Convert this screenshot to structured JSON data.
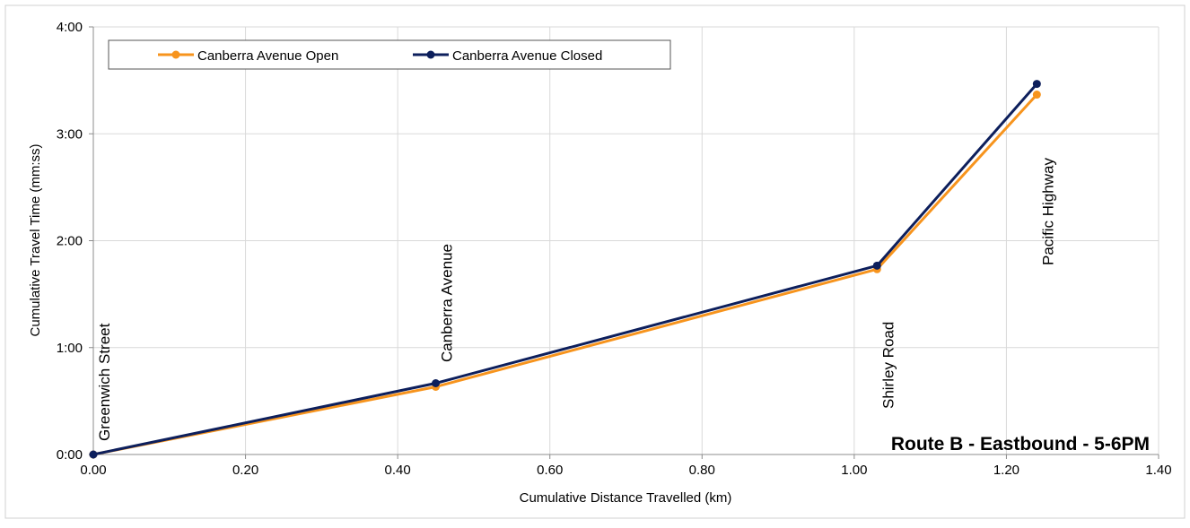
{
  "chart_data": {
    "type": "line",
    "title": "Route B - Eastbound - 5-6PM",
    "xlabel": "Cumulative Distance Travelled (km)",
    "ylabel": "Cumulative Travel Time (mm:ss)",
    "xlim": [
      0,
      1.4
    ],
    "ylim": [
      0,
      240
    ],
    "x_ticks": [
      "0.00",
      "0.20",
      "0.40",
      "0.60",
      "0.80",
      "1.00",
      "1.20",
      "1.40"
    ],
    "y_ticks": [
      "0:00",
      "1:00",
      "2:00",
      "3:00",
      "4:00"
    ],
    "grid": true,
    "legend_position": "top-left",
    "series": [
      {
        "name": "Canberra Avenue Open",
        "color": "#f7941d",
        "x": [
          0.0,
          0.45,
          1.03,
          1.24
        ],
        "y_seconds": [
          0,
          38,
          104,
          202
        ]
      },
      {
        "name": "Canberra Avenue Closed",
        "color": "#0d1f5c",
        "x": [
          0.0,
          0.45,
          1.03,
          1.24
        ],
        "y_seconds": [
          0,
          40,
          106,
          208
        ]
      }
    ],
    "annotations": [
      {
        "text": "Greenwich Street",
        "x": 0.0
      },
      {
        "text": "Canberra Avenue",
        "x": 0.45
      },
      {
        "text": "Shirley Road",
        "x": 1.03
      },
      {
        "text": "Pacific Highway",
        "x": 1.24
      }
    ]
  }
}
